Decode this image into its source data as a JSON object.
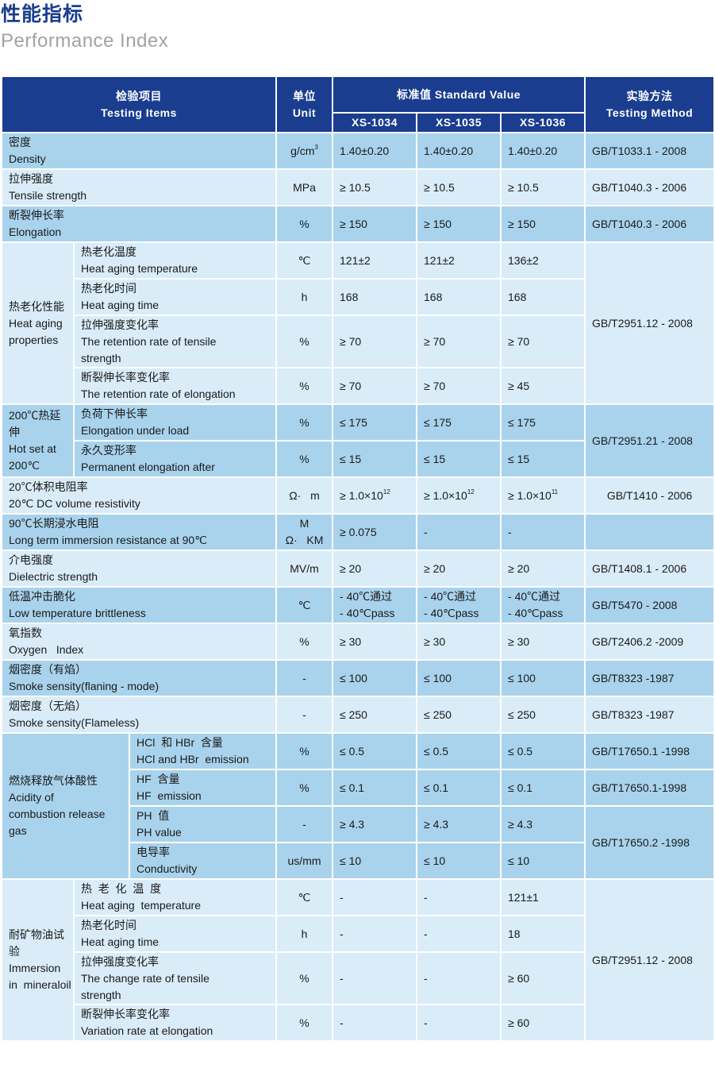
{
  "page": {
    "title_cn": "性能指标",
    "title_en": "Performance Index"
  },
  "header": {
    "items_cn": "检验项目",
    "items_en": "Testing Items",
    "unit_cn": "单位",
    "unit_en": "Unit",
    "standard": "标准值 Standard Value",
    "col1": "XS-1034",
    "col2": "XS-1035",
    "col3": "XS-1036",
    "method_cn": "实验方法",
    "method_en": "Testing Method"
  },
  "rows": {
    "density": {
      "cn": "密度",
      "en": "Density",
      "unit": "g/cm",
      "unit_sup": "3",
      "v1": "1.40±0.20",
      "v2": "1.40±0.20",
      "v3": "1.40±0.20",
      "method": "GB/T1033.1 - 2008"
    },
    "tensile": {
      "cn": "拉伸强度",
      "en": "Tensile strength",
      "unit": "MPa",
      "v1": "≥ 10.5",
      "v2": "≥ 10.5",
      "v3": "≥ 10.5",
      "method": "GB/T1040.3 - 2006"
    },
    "elongation": {
      "cn": "断裂伸长率",
      "en": "Elongation",
      "unit": "%",
      "v1": "≥ 150",
      "v2": "≥ 150",
      "v3": "≥ 150",
      "method": "GB/T1040.3 - 2006"
    },
    "heat_aging": {
      "group_cn": "热老化性能",
      "group_en1": "Heat aging",
      "group_en2": "properties",
      "method": "GB/T2951.12 - 2008",
      "temp": {
        "cn": "热老化温度",
        "en": "Heat aging temperature",
        "unit": "℃",
        "v1": "121±2",
        "v2": "121±2",
        "v3": "136±2"
      },
      "time": {
        "cn": "热老化时间",
        "en": "Heat aging time",
        "unit": "h",
        "v1": "168",
        "v2": "168",
        "v3": "168"
      },
      "tensile": {
        "cn": "拉伸强度变化率",
        "en1": "The  retention rate  of tensile",
        "en2": "strength",
        "unit": "%",
        "v1": "≥ 70",
        "v2": "≥ 70",
        "v3": "≥ 70"
      },
      "elong": {
        "cn": "断裂伸长率变化率",
        "en": "The  retention rate  of elongation",
        "unit": "%",
        "v1": "≥ 70",
        "v2": "≥ 70",
        "v3": "≥ 45"
      }
    },
    "hotset": {
      "group_cn": "200℃热延伸",
      "group_en1": "Hot   set   at",
      "group_en2": "200℃",
      "method": "GB/T2951.21 - 2008",
      "load": {
        "cn": "负荷下伸长率",
        "en": "Elongation under load",
        "unit": "%",
        "v1": "≤ 175",
        "v2": "≤ 175",
        "v3": "≤ 175"
      },
      "perm": {
        "cn": "永久变形率",
        "en": "Permanent elongation after",
        "unit": "%",
        "v1": "≤ 15",
        "v2": "≤ 15",
        "v3": "≤ 15"
      }
    },
    "volume_res": {
      "cn": "20℃体积电阻率",
      "en": "20℃ DC volume resistivity",
      "unit": "Ω·   m",
      "v1": "≥ 1.0×10",
      "v1_sup": "12",
      "v2": "≥ 1.0×10",
      "v2_sup": "12",
      "v3": "≥ 1.0×10",
      "v3_sup": "11",
      "method": "GB/T1410 - 2006"
    },
    "immersion_res": {
      "cn": "90℃长期浸水电阻",
      "en": "Long term immersion resistance at 90℃",
      "unit1": "M",
      "unit2": "Ω·   KM",
      "v1": "≥ 0.075",
      "v2": "-",
      "v3": "-",
      "method": ""
    },
    "dielectric": {
      "cn": "介电强度",
      "en": "Dielectric strength",
      "unit": "MV/m",
      "v1": "≥ 20",
      "v2": "≥ 20",
      "v3": "≥ 20",
      "method": "GB/T1408.1  - 2006"
    },
    "brittleness": {
      "cn": "低温冲击脆化",
      "en": "Low temperature brittleness",
      "unit": "℃",
      "v1a": "- 40℃通过",
      "v1b": "- 40℃pass",
      "v2a": "- 40℃通过",
      "v2b": "- 40℃pass",
      "v3a": "- 40℃通过",
      "v3b": "- 40℃pass",
      "method": "GB/T5470  - 2008"
    },
    "oxygen": {
      "cn": "氧指数",
      "en": "Oxygen   Index",
      "unit": "%",
      "v1": "≥ 30",
      "v2": "≥ 30",
      "v3": "≥ 30",
      "method": "GB/T2406.2 -2009"
    },
    "smoke_flaming": {
      "cn": "烟密度（有焰）",
      "en": "Smoke sensity(flaning - mode)",
      "unit": "-",
      "v1": "≤ 100",
      "v2": "≤ 100",
      "v3": "≤ 100",
      "method": "GB/T8323 -1987"
    },
    "smoke_flameless": {
      "cn": "烟密度（无焰）",
      "en": "Smoke sensity(Flameless)",
      "unit": "-",
      "v1": "≤ 250",
      "v2": "≤ 250",
      "v3": "≤ 250",
      "method": "GB/T8323 -1987"
    },
    "acidity": {
      "group_cn": "燃烧释放气体酸性",
      "group_en1": "Acidity  of",
      "group_en2": "combustion release",
      "group_en3": "gas",
      "hcl": {
        "cn": "HCl  和 HBr  含量",
        "en": "HCl and HBr  emission",
        "unit": "%",
        "v1": "≤ 0.5",
        "v2": "≤ 0.5",
        "v3": "≤ 0.5",
        "method": "GB/T17650.1 -1998"
      },
      "hf": {
        "cn": "HF  含量",
        "en": "HF  emission",
        "unit": "%",
        "v1": "≤ 0.1",
        "v2": "≤ 0.1",
        "v3": "≤ 0.1",
        "method": "GB/T17650.1-1998"
      },
      "ph": {
        "cn": "PH  值",
        "en": "PH value",
        "unit": "-",
        "v1": "≥ 4.3",
        "v2": "≥ 4.3",
        "v3": "≥ 4.3"
      },
      "cond": {
        "cn": "电导率",
        "en": "Conductivity",
        "unit": "us/mm",
        "v1": "≤ 10",
        "v2": "≤ 10",
        "v3": "≤ 10"
      },
      "method2": "GB/T17650.2 -1998"
    },
    "mineral": {
      "group_cn1": "耐矿物油试",
      "group_cn2": "验",
      "group_en1": "Immersion",
      "group_en2": "in  mineraloil",
      "method": "GB/T2951.12 - 2008",
      "temp": {
        "cn": "热  老  化  温  度",
        "en": "Heat aging  temperature",
        "unit": "℃",
        "v1": "-",
        "v2": "-",
        "v3": "121±1"
      },
      "time": {
        "cn": "热老化时间",
        "en": "Heat aging time",
        "unit": "h",
        "v1": "-",
        "v2": "-",
        "v3": "18"
      },
      "tensile": {
        "cn": "拉伸强度变化率",
        "en1": "The change rate of tensile",
        "en2": "strength",
        "unit": "%",
        "v1": "-",
        "v2": "-",
        "v3": "≥ 60"
      },
      "elong": {
        "cn": "断裂伸长率变化率",
        "en": "Variation rate at elongation",
        "unit": "%",
        "v1": "-",
        "v2": "-",
        "v3": "≥ 60"
      }
    }
  }
}
